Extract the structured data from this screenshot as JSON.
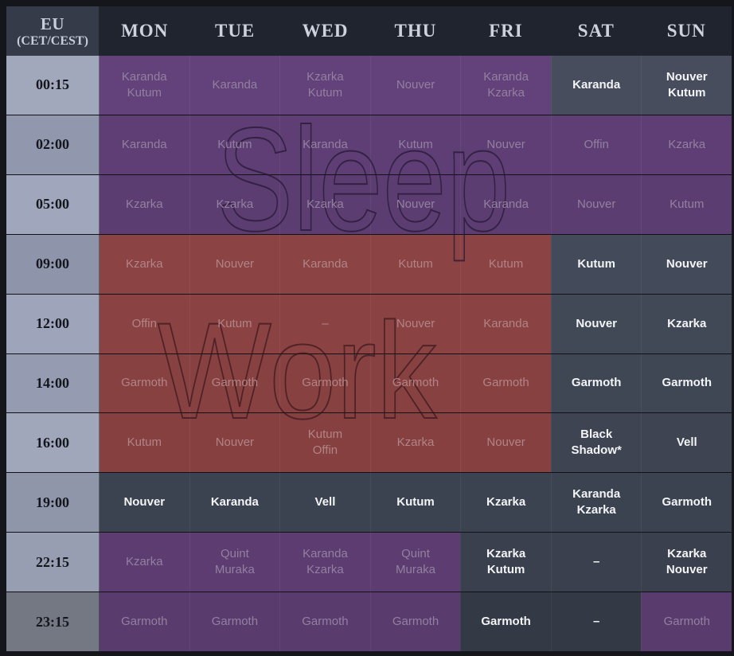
{
  "header": {
    "timezone_line1": "EU",
    "timezone_line2": "(CET/CEST)",
    "days": [
      "MON",
      "TUE",
      "WED",
      "THU",
      "FRI",
      "SAT",
      "SUN"
    ]
  },
  "watermarks": {
    "sleep_label": "Sleep",
    "work_label": "Work"
  },
  "colors": {
    "sleep_zone_purple": "#5e3e74",
    "work_zone_red": "#8a4141",
    "active_cell_slate": "#414856",
    "header_bg": "#20242f",
    "timezone_header_bg": "#363b4a"
  },
  "rows": [
    {
      "time": "00:15",
      "zone": "sleep",
      "cells": [
        {
          "lines": [
            "Karanda",
            "Kutum"
          ],
          "active": false
        },
        {
          "lines": [
            "Karanda"
          ],
          "active": false
        },
        {
          "lines": [
            "Kzarka",
            "Kutum"
          ],
          "active": false
        },
        {
          "lines": [
            "Nouver"
          ],
          "active": false
        },
        {
          "lines": [
            "Karanda",
            "Kzarka"
          ],
          "active": false
        },
        {
          "lines": [
            "Karanda"
          ],
          "active": true
        },
        {
          "lines": [
            "Nouver",
            "Kutum"
          ],
          "active": true
        }
      ]
    },
    {
      "time": "02:00",
      "zone": "sleep",
      "cells": [
        {
          "lines": [
            "Karanda"
          ],
          "active": false
        },
        {
          "lines": [
            "Kutum"
          ],
          "active": false
        },
        {
          "lines": [
            "Karanda"
          ],
          "active": false
        },
        {
          "lines": [
            "Kutum"
          ],
          "active": false
        },
        {
          "lines": [
            "Nouver"
          ],
          "active": false
        },
        {
          "lines": [
            "Offin"
          ],
          "active": false
        },
        {
          "lines": [
            "Kzarka"
          ],
          "active": false
        }
      ]
    },
    {
      "time": "05:00",
      "zone": "sleep",
      "cells": [
        {
          "lines": [
            "Kzarka"
          ],
          "active": false
        },
        {
          "lines": [
            "Kzarka"
          ],
          "active": false
        },
        {
          "lines": [
            "Kzarka"
          ],
          "active": false
        },
        {
          "lines": [
            "Nouver"
          ],
          "active": false
        },
        {
          "lines": [
            "Karanda"
          ],
          "active": false
        },
        {
          "lines": [
            "Nouver"
          ],
          "active": false
        },
        {
          "lines": [
            "Kutum"
          ],
          "active": false
        }
      ]
    },
    {
      "time": "09:00",
      "zone": "work",
      "cells": [
        {
          "lines": [
            "Kzarka"
          ],
          "active": false
        },
        {
          "lines": [
            "Nouver"
          ],
          "active": false
        },
        {
          "lines": [
            "Karanda"
          ],
          "active": false
        },
        {
          "lines": [
            "Kutum"
          ],
          "active": false
        },
        {
          "lines": [
            "Kutum"
          ],
          "active": false
        },
        {
          "lines": [
            "Kutum"
          ],
          "active": true
        },
        {
          "lines": [
            "Nouver"
          ],
          "active": true
        }
      ]
    },
    {
      "time": "12:00",
      "zone": "work",
      "cells": [
        {
          "lines": [
            "Offin"
          ],
          "active": false
        },
        {
          "lines": [
            "Kutum"
          ],
          "active": false
        },
        {
          "lines": [
            "–"
          ],
          "active": false
        },
        {
          "lines": [
            "Nouver"
          ],
          "active": false
        },
        {
          "lines": [
            "Karanda"
          ],
          "active": false
        },
        {
          "lines": [
            "Nouver"
          ],
          "active": true
        },
        {
          "lines": [
            "Kzarka"
          ],
          "active": true
        }
      ]
    },
    {
      "time": "14:00",
      "zone": "work",
      "cells": [
        {
          "lines": [
            "Garmoth"
          ],
          "active": false
        },
        {
          "lines": [
            "Garmoth"
          ],
          "active": false
        },
        {
          "lines": [
            "Garmoth"
          ],
          "active": false
        },
        {
          "lines": [
            "Garmoth"
          ],
          "active": false
        },
        {
          "lines": [
            "Garmoth"
          ],
          "active": false
        },
        {
          "lines": [
            "Garmoth"
          ],
          "active": true
        },
        {
          "lines": [
            "Garmoth"
          ],
          "active": true
        }
      ]
    },
    {
      "time": "16:00",
      "zone": "work",
      "cells": [
        {
          "lines": [
            "Kutum"
          ],
          "active": false
        },
        {
          "lines": [
            "Nouver"
          ],
          "active": false
        },
        {
          "lines": [
            "Kutum",
            "Offin"
          ],
          "active": false
        },
        {
          "lines": [
            "Kzarka"
          ],
          "active": false
        },
        {
          "lines": [
            "Nouver"
          ],
          "active": false
        },
        {
          "lines": [
            "Black",
            "Shadow*"
          ],
          "active": true
        },
        {
          "lines": [
            "Vell"
          ],
          "active": true
        }
      ]
    },
    {
      "time": "19:00",
      "zone": "none",
      "cells": [
        {
          "lines": [
            "Nouver"
          ],
          "active": true
        },
        {
          "lines": [
            "Karanda"
          ],
          "active": true
        },
        {
          "lines": [
            "Vell"
          ],
          "active": true
        },
        {
          "lines": [
            "Kutum"
          ],
          "active": true
        },
        {
          "lines": [
            "Kzarka"
          ],
          "active": true
        },
        {
          "lines": [
            "Karanda",
            "Kzarka"
          ],
          "active": true
        },
        {
          "lines": [
            "Garmoth"
          ],
          "active": true
        }
      ]
    },
    {
      "time": "22:15",
      "zone": "sleep",
      "cells": [
        {
          "lines": [
            "Kzarka"
          ],
          "active": false
        },
        {
          "lines": [
            "Quint",
            "Muraka"
          ],
          "active": false
        },
        {
          "lines": [
            "Karanda",
            "Kzarka"
          ],
          "active": false
        },
        {
          "lines": [
            "Quint",
            "Muraka"
          ],
          "active": false
        },
        {
          "lines": [
            "Kzarka",
            "Kutum"
          ],
          "active": true
        },
        {
          "lines": [
            "–"
          ],
          "active": true
        },
        {
          "lines": [
            "Kzarka",
            "Nouver"
          ],
          "active": true
        }
      ]
    },
    {
      "time": "23:15",
      "zone": "sleep",
      "cells": [
        {
          "lines": [
            "Garmoth"
          ],
          "active": false
        },
        {
          "lines": [
            "Garmoth"
          ],
          "active": false
        },
        {
          "lines": [
            "Garmoth"
          ],
          "active": false
        },
        {
          "lines": [
            "Garmoth"
          ],
          "active": false
        },
        {
          "lines": [
            "Garmoth"
          ],
          "active": true
        },
        {
          "lines": [
            "–"
          ],
          "active": true
        },
        {
          "lines": [
            "Garmoth"
          ],
          "active": false
        }
      ]
    }
  ]
}
